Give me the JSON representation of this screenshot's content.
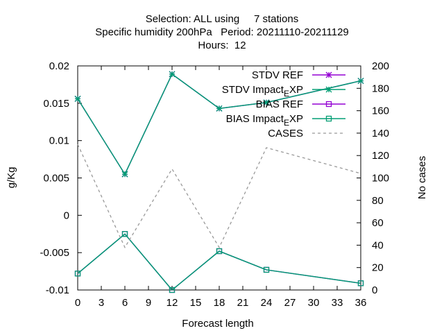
{
  "chart_data": {
    "type": "line",
    "title_lines": [
      "Selection: ALL using     7 stations",
      "Specific humidity 200hPa   Period: 20211110-20211129",
      "Hours:  12"
    ],
    "xlabel": "Forecast length",
    "ylabel": "g/Kg",
    "y2label": "No cases",
    "xlim": [
      0,
      36
    ],
    "ylim": [
      -0.01,
      0.02
    ],
    "y2lim": [
      0,
      200
    ],
    "xticks": [
      "0",
      "3",
      "6",
      "9",
      "12",
      "15",
      "18",
      "21",
      "24",
      "27",
      "30",
      "33",
      "36"
    ],
    "yticks": [
      "-0.01",
      "-0.005",
      "0",
      "0.005",
      "0.01",
      "0.015",
      "0.02"
    ],
    "y2ticks": [
      "0",
      "20",
      "40",
      "60",
      "80",
      "100",
      "120",
      "140",
      "160",
      "180",
      "200"
    ],
    "grid": false,
    "legend_position": "top-right",
    "x": [
      0,
      6,
      12,
      18,
      24,
      36
    ],
    "series": [
      {
        "name": "STDV REF",
        "axis": "y",
        "color": "#9400d3",
        "marker": "star",
        "dash": false,
        "values": [
          0.0156,
          0.0055,
          0.0189,
          0.0143,
          0.0151,
          0.018
        ]
      },
      {
        "name": "STDV Impact_EXP",
        "axis": "y",
        "color": "#009e73",
        "marker": "star",
        "dash": false,
        "values": [
          0.0156,
          0.0055,
          0.0189,
          0.0143,
          0.0151,
          0.018
        ]
      },
      {
        "name": "BIAS REF",
        "axis": "y",
        "color": "#9400d3",
        "marker": "square",
        "dash": false,
        "values": [
          -0.0078,
          -0.0025,
          -0.01,
          -0.0048,
          -0.0073,
          -0.0091
        ]
      },
      {
        "name": "BIAS Impact_EXP",
        "axis": "y",
        "color": "#009e73",
        "marker": "square",
        "dash": false,
        "values": [
          -0.0078,
          -0.0025,
          -0.01,
          -0.0048,
          -0.0073,
          -0.0091
        ]
      },
      {
        "name": "CASES",
        "axis": "y2",
        "color": "#999999",
        "marker": "none",
        "dash": true,
        "values": [
          130,
          38,
          108,
          38,
          127,
          104
        ]
      }
    ]
  }
}
